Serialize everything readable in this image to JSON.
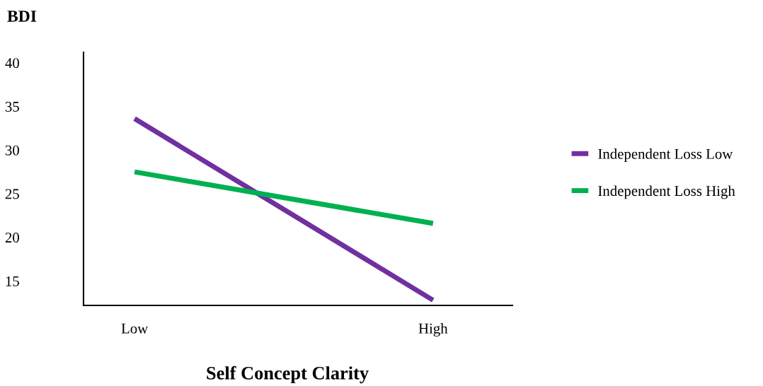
{
  "chart_data": {
    "type": "line",
    "ylabel": "BDI",
    "xlabel": "Self Concept Clarity",
    "categories": [
      "Low",
      "High"
    ],
    "ylim": [
      12.2,
      41.2
    ],
    "yticks": [
      15,
      20,
      25,
      30,
      35,
      40
    ],
    "grid": false,
    "legend": "right",
    "marker": "none",
    "line_style": "solid",
    "series": [
      {
        "name": "Independent Loss Low",
        "color": "#7030a0",
        "values": [
          33.6,
          12.8
        ]
      },
      {
        "name": "Independent Loss High",
        "color": "#00b050",
        "values": [
          27.5,
          21.6
        ]
      }
    ]
  }
}
